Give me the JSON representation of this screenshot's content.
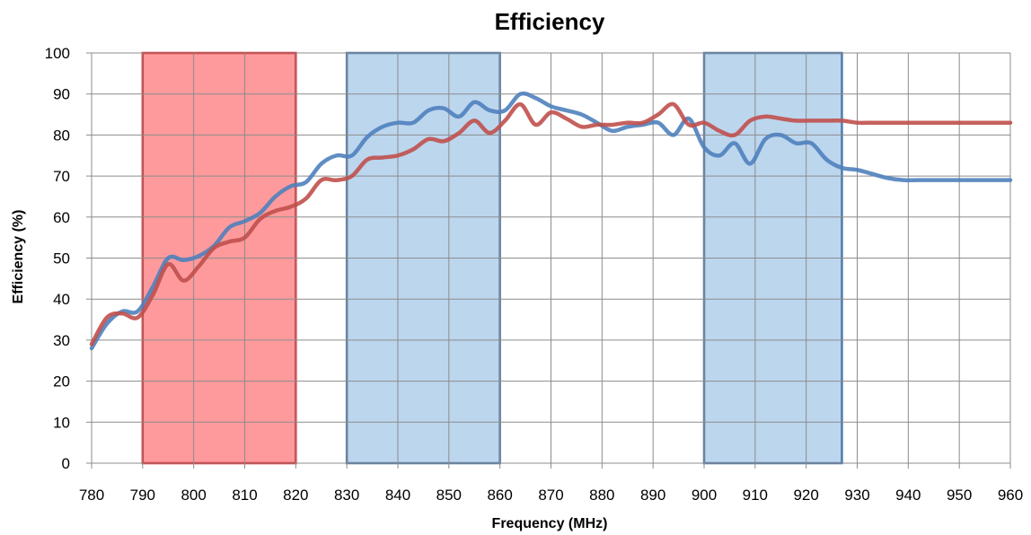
{
  "chart_data": {
    "type": "line",
    "title": "Efficiency",
    "xlabel": "Frequency (MHz)",
    "ylabel": "Efficiency (%)",
    "xlim": [
      780,
      960
    ],
    "ylim": [
      0,
      100
    ],
    "xticks": [
      780,
      790,
      800,
      810,
      820,
      830,
      840,
      850,
      860,
      870,
      880,
      890,
      900,
      910,
      920,
      930,
      940,
      950,
      960
    ],
    "yticks": [
      0,
      10,
      20,
      30,
      40,
      50,
      60,
      70,
      80,
      90,
      100
    ],
    "grid": true,
    "legend": "none",
    "bands": [
      {
        "x0": 790,
        "x1": 820,
        "y1": 100,
        "fill": "#ff9a9c",
        "stroke": "#e8252a"
      },
      {
        "x0": 830,
        "x1": 860,
        "y1": 100,
        "fill": "#bcd6ee",
        "stroke": "#4f7bad"
      },
      {
        "x0": 900,
        "x1": 927,
        "y1": 100,
        "fill": "#bcd6ee",
        "stroke": "#4f7bad"
      }
    ],
    "series": [
      {
        "color": "#4f81bd",
        "x": [
          780,
          783,
          786,
          789,
          792,
          795,
          798,
          801,
          804,
          807,
          810,
          813,
          816,
          819,
          822,
          825,
          828,
          831,
          834,
          837,
          840,
          843,
          846,
          849,
          852,
          855,
          858,
          861,
          864,
          867,
          870,
          873,
          876,
          879,
          882,
          885,
          888,
          891,
          894,
          897,
          900,
          903,
          906,
          909,
          912,
          915,
          918,
          921,
          924,
          927,
          930,
          933,
          936,
          939,
          942,
          945,
          948,
          951,
          954,
          957,
          960
        ],
        "y": [
          28,
          34,
          37,
          37,
          43,
          50,
          49.5,
          50.5,
          53,
          57.5,
          59,
          61,
          65,
          67.5,
          68.5,
          73,
          75,
          75,
          79.5,
          82,
          83,
          83,
          86,
          86.5,
          84.5,
          88,
          86,
          86,
          90,
          89,
          87,
          86,
          85,
          83,
          81,
          82,
          82.5,
          83,
          80,
          84,
          77,
          75,
          78,
          73,
          79,
          80,
          78,
          78,
          74,
          72,
          71.5,
          70.5,
          69.5,
          69,
          69,
          69,
          69,
          69,
          69,
          69,
          69
        ]
      },
      {
        "color": "#c0504d",
        "x": [
          780,
          783,
          786,
          789,
          792,
          795,
          798,
          801,
          804,
          807,
          810,
          813,
          816,
          819,
          822,
          825,
          828,
          831,
          834,
          837,
          840,
          843,
          846,
          849,
          852,
          855,
          858,
          861,
          864,
          867,
          870,
          873,
          876,
          879,
          882,
          885,
          888,
          891,
          894,
          897,
          900,
          903,
          906,
          909,
          912,
          915,
          918,
          921,
          924,
          927,
          930,
          933,
          936,
          939,
          942,
          945,
          948,
          951,
          954,
          957,
          960
        ],
        "y": [
          29,
          35.5,
          36.5,
          35.5,
          41,
          48.5,
          44.5,
          48,
          52.5,
          54,
          55,
          59.5,
          61.5,
          62.5,
          64.5,
          69,
          69,
          70,
          74,
          74.5,
          75,
          76.5,
          79,
          78.5,
          80.5,
          83.5,
          80.5,
          83.5,
          87.5,
          82.5,
          85.5,
          84,
          82,
          82.5,
          82.5,
          83,
          83,
          85,
          87.5,
          82.5,
          83,
          81,
          80,
          83.5,
          84.5,
          84,
          83.5,
          83.5,
          83.5,
          83.5,
          83,
          83,
          83,
          83,
          83,
          83,
          83,
          83,
          83,
          83,
          83
        ]
      }
    ]
  }
}
